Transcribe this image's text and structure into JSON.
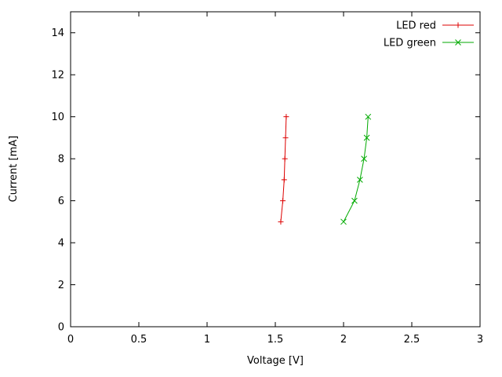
{
  "chart": {
    "xlabel": "Voltage [V]",
    "ylabel": "Current [mA]"
  },
  "chart_data": {
    "type": "line",
    "title": "",
    "xlabel": "Voltage [V]",
    "ylabel": "Current [mA]",
    "xlim": [
      0,
      3
    ],
    "ylim": [
      0,
      15
    ],
    "xticks": [
      0,
      0.5,
      1,
      1.5,
      2,
      2.5,
      3
    ],
    "xtick_labels": [
      "0",
      "0.5",
      "1",
      "1.5",
      "2",
      "2.5",
      "3"
    ],
    "yticks": [
      0,
      2,
      4,
      6,
      8,
      10,
      12,
      14
    ],
    "ytick_labels": [
      "0",
      "2",
      "4",
      "6",
      "8",
      "10",
      "12",
      "14"
    ],
    "grid": false,
    "legend_position": "top-right",
    "axis_color": "#000000",
    "background_color": "#ffffff",
    "series": [
      {
        "name": "LED red",
        "color": "#dd0000",
        "marker": "plus",
        "points": [
          [
            1.54,
            5
          ],
          [
            1.555,
            6
          ],
          [
            1.565,
            7
          ],
          [
            1.57,
            8
          ],
          [
            1.575,
            9
          ],
          [
            1.58,
            10
          ]
        ]
      },
      {
        "name": "LED green",
        "color": "#00aa00",
        "marker": "x",
        "points": [
          [
            2.0,
            5
          ],
          [
            2.08,
            6
          ],
          [
            2.12,
            7
          ],
          [
            2.15,
            8
          ],
          [
            2.17,
            9
          ],
          [
            2.18,
            10
          ]
        ]
      }
    ]
  }
}
